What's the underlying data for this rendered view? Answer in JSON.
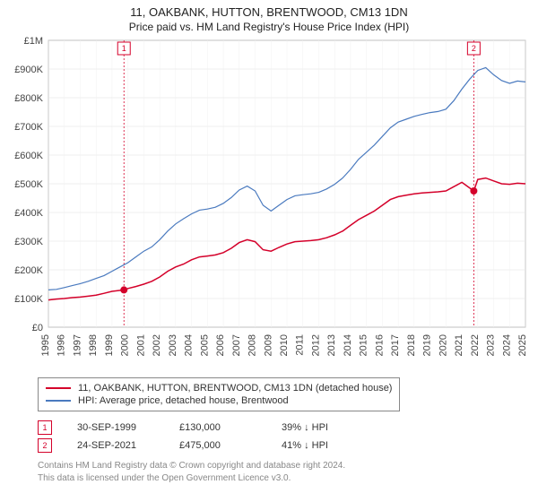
{
  "title_line1": "11, OAKBANK, HUTTON, BRENTWOOD, CM13 1DN",
  "title_line2": "Price paid vs. HM Land Registry's House Price Index (HPI)",
  "chart": {
    "type": "line",
    "background_color": "#ffffff",
    "plot_bg": "#ffffff",
    "grid_color": "#e0e0e0",
    "grid_minor_color": "#f0f0f0",
    "axis_color": "#666666",
    "y": {
      "min": 0,
      "max": 1000000,
      "step": 100000,
      "format_prefix": "£",
      "labels": [
        "£0",
        "£100K",
        "£200K",
        "£300K",
        "£400K",
        "£500K",
        "£600K",
        "£700K",
        "£800K",
        "£900K",
        "£1M"
      ],
      "label_fontsize": 11
    },
    "x": {
      "min": 1995,
      "max": 2025,
      "step": 1,
      "labels": [
        "1995",
        "1996",
        "1997",
        "1998",
        "1999",
        "2000",
        "2001",
        "2002",
        "2003",
        "2004",
        "2005",
        "2006",
        "2007",
        "2008",
        "2009",
        "2010",
        "2011",
        "2012",
        "2013",
        "2014",
        "2015",
        "2016",
        "2017",
        "2018",
        "2019",
        "2020",
        "2021",
        "2022",
        "2023",
        "2024",
        "2025"
      ],
      "label_fontsize": 11,
      "rotate": -90
    },
    "series": [
      {
        "name": "price_paid",
        "label": "11, OAKBANK, HUTTON, BRENTWOOD, CM13 1DN (detached house)",
        "color": "#d4002a",
        "width": 1.5,
        "points": [
          [
            1995,
            95000
          ],
          [
            1995.5,
            98000
          ],
          [
            1996,
            100000
          ],
          [
            1996.5,
            103000
          ],
          [
            1997,
            105000
          ],
          [
            1997.5,
            108000
          ],
          [
            1998,
            112000
          ],
          [
            1998.5,
            118000
          ],
          [
            1999,
            125000
          ],
          [
            1999.75,
            130000
          ],
          [
            2000,
            135000
          ],
          [
            2000.5,
            142000
          ],
          [
            2001,
            150000
          ],
          [
            2001.5,
            160000
          ],
          [
            2002,
            175000
          ],
          [
            2002.5,
            195000
          ],
          [
            2003,
            210000
          ],
          [
            2003.5,
            220000
          ],
          [
            2004,
            235000
          ],
          [
            2004.5,
            245000
          ],
          [
            2005,
            248000
          ],
          [
            2005.5,
            252000
          ],
          [
            2006,
            260000
          ],
          [
            2006.5,
            275000
          ],
          [
            2007,
            295000
          ],
          [
            2007.5,
            305000
          ],
          [
            2008,
            298000
          ],
          [
            2008.5,
            270000
          ],
          [
            2009,
            265000
          ],
          [
            2009.5,
            278000
          ],
          [
            2010,
            290000
          ],
          [
            2010.5,
            298000
          ],
          [
            2011,
            300000
          ],
          [
            2011.5,
            302000
          ],
          [
            2012,
            305000
          ],
          [
            2012.5,
            312000
          ],
          [
            2013,
            322000
          ],
          [
            2013.5,
            335000
          ],
          [
            2014,
            355000
          ],
          [
            2014.5,
            375000
          ],
          [
            2015,
            390000
          ],
          [
            2015.5,
            405000
          ],
          [
            2016,
            425000
          ],
          [
            2016.5,
            445000
          ],
          [
            2017,
            455000
          ],
          [
            2017.5,
            460000
          ],
          [
            2018,
            465000
          ],
          [
            2018.5,
            468000
          ],
          [
            2019,
            470000
          ],
          [
            2019.5,
            472000
          ],
          [
            2020,
            475000
          ],
          [
            2020.5,
            490000
          ],
          [
            2021,
            505000
          ],
          [
            2021.75,
            475000
          ],
          [
            2022,
            515000
          ],
          [
            2022.5,
            520000
          ],
          [
            2023,
            510000
          ],
          [
            2023.5,
            500000
          ],
          [
            2024,
            498000
          ],
          [
            2024.5,
            502000
          ],
          [
            2025,
            500000
          ]
        ]
      },
      {
        "name": "hpi",
        "label": "HPI: Average price, detached house, Brentwood",
        "color": "#4a7abf",
        "width": 1.2,
        "points": [
          [
            1995,
            130000
          ],
          [
            1995.5,
            132000
          ],
          [
            1996,
            138000
          ],
          [
            1996.5,
            145000
          ],
          [
            1997,
            152000
          ],
          [
            1997.5,
            160000
          ],
          [
            1998,
            170000
          ],
          [
            1998.5,
            180000
          ],
          [
            1999,
            195000
          ],
          [
            1999.5,
            210000
          ],
          [
            2000,
            225000
          ],
          [
            2000.5,
            245000
          ],
          [
            2001,
            265000
          ],
          [
            2001.5,
            280000
          ],
          [
            2002,
            305000
          ],
          [
            2002.5,
            335000
          ],
          [
            2003,
            360000
          ],
          [
            2003.5,
            378000
          ],
          [
            2004,
            395000
          ],
          [
            2004.5,
            408000
          ],
          [
            2005,
            412000
          ],
          [
            2005.5,
            418000
          ],
          [
            2006,
            432000
          ],
          [
            2006.5,
            452000
          ],
          [
            2007,
            478000
          ],
          [
            2007.5,
            492000
          ],
          [
            2008,
            475000
          ],
          [
            2008.5,
            425000
          ],
          [
            2009,
            405000
          ],
          [
            2009.5,
            425000
          ],
          [
            2010,
            445000
          ],
          [
            2010.5,
            458000
          ],
          [
            2011,
            462000
          ],
          [
            2011.5,
            465000
          ],
          [
            2012,
            470000
          ],
          [
            2012.5,
            482000
          ],
          [
            2013,
            498000
          ],
          [
            2013.5,
            520000
          ],
          [
            2014,
            550000
          ],
          [
            2014.5,
            585000
          ],
          [
            2015,
            610000
          ],
          [
            2015.5,
            635000
          ],
          [
            2016,
            665000
          ],
          [
            2016.5,
            695000
          ],
          [
            2017,
            715000
          ],
          [
            2017.5,
            725000
          ],
          [
            2018,
            735000
          ],
          [
            2018.5,
            742000
          ],
          [
            2019,
            748000
          ],
          [
            2019.5,
            752000
          ],
          [
            2020,
            760000
          ],
          [
            2020.5,
            790000
          ],
          [
            2021,
            830000
          ],
          [
            2021.5,
            865000
          ],
          [
            2022,
            895000
          ],
          [
            2022.5,
            905000
          ],
          [
            2023,
            880000
          ],
          [
            2023.5,
            860000
          ],
          [
            2024,
            850000
          ],
          [
            2024.5,
            858000
          ],
          [
            2025,
            855000
          ]
        ]
      }
    ],
    "markers": [
      {
        "n": "1",
        "x": 1999.75,
        "y": 130000,
        "color": "#d4002a",
        "date": "30-SEP-1999",
        "price": "£130,000",
        "delta": "39% ↓ HPI"
      },
      {
        "n": "2",
        "x": 2021.75,
        "y": 475000,
        "color": "#d4002a",
        "date": "24-SEP-2021",
        "price": "£475,000",
        "delta": "41% ↓ HPI"
      }
    ],
    "marker_line_color": "#d4002a",
    "marker_line_dash": "2,2",
    "marker_box_border": "#d4002a",
    "marker_box_bg": "#ffffff"
  },
  "legend": {
    "border_color": "#888888"
  },
  "footer_line1": "Contains HM Land Registry data © Crown copyright and database right 2024.",
  "footer_line2": "This data is licensed under the Open Government Licence v3.0."
}
